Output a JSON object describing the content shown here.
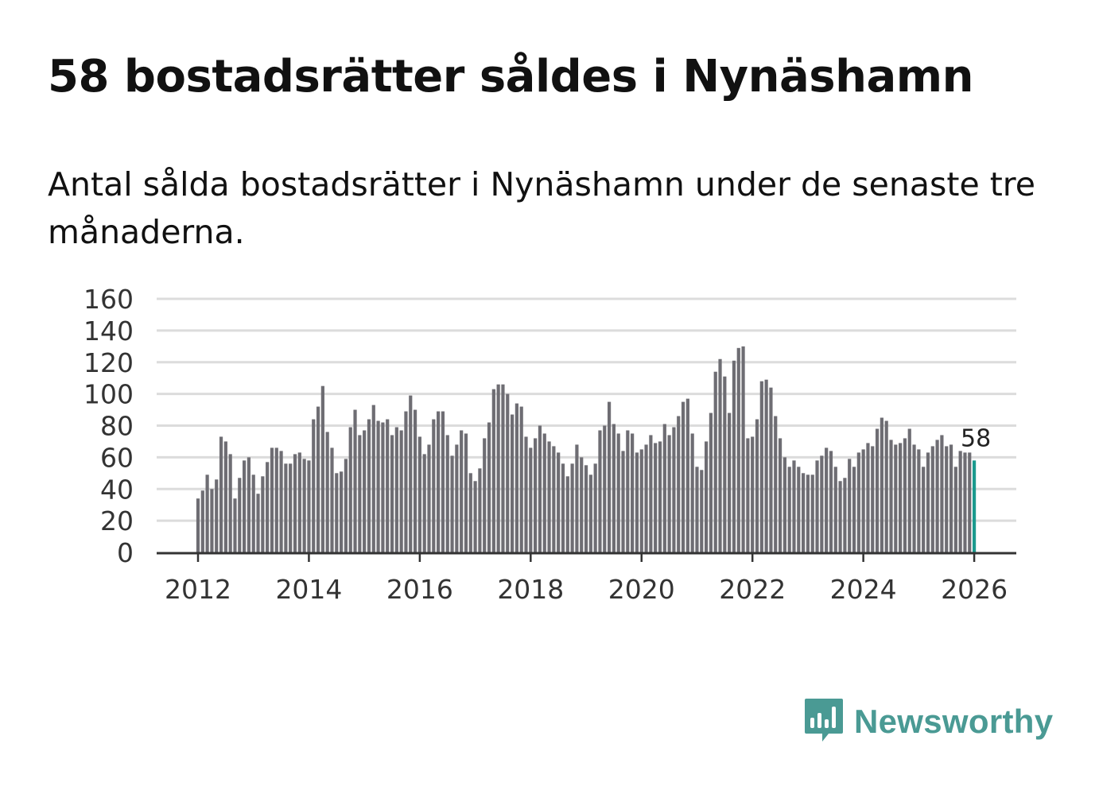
{
  "title": "58 bostadsrätter såldes i Nynäshamn",
  "subtitle": "Antal sålda bostadsrätter i Nynäshamn under de senaste tre månaderna.",
  "brand": {
    "name": "Newsworthy",
    "color": "#4a9a94",
    "icon": "newsworthy-logo-icon"
  },
  "colors": {
    "bar": "#6e6d73",
    "highlight": "#1b9a8e",
    "grid": "#dcdcdc",
    "axis": "#333333"
  },
  "chart_data": {
    "type": "bar",
    "title": "58 bostadsrätter såldes i Nynäshamn",
    "xlabel": "",
    "ylabel": "",
    "ylim": [
      0,
      160
    ],
    "yticks": [
      0,
      20,
      40,
      60,
      80,
      100,
      120,
      140,
      160
    ],
    "xticks": [
      2012,
      2014,
      2016,
      2018,
      2020,
      2022,
      2024,
      2026
    ],
    "x_start": "2012-01",
    "x_end": "2026-01",
    "grid": true,
    "end_label": "58",
    "values": [
      34,
      39,
      49,
      40,
      46,
      73,
      70,
      62,
      34,
      47,
      58,
      60,
      49,
      37,
      48,
      57,
      66,
      66,
      64,
      56,
      56,
      62,
      63,
      59,
      58,
      84,
      92,
      105,
      76,
      66,
      50,
      51,
      59,
      79,
      90,
      74,
      77,
      84,
      93,
      83,
      82,
      84,
      74,
      79,
      77,
      89,
      99,
      90,
      73,
      62,
      68,
      84,
      89,
      89,
      74,
      61,
      68,
      77,
      75,
      50,
      45,
      53,
      72,
      82,
      103,
      106,
      106,
      100,
      87,
      94,
      92,
      73,
      66,
      72,
      80,
      75,
      70,
      67,
      63,
      56,
      48,
      56,
      68,
      60,
      55,
      49,
      56,
      77,
      80,
      95,
      81,
      75,
      64,
      77,
      75,
      63,
      65,
      68,
      74,
      69,
      70,
      81,
      74,
      79,
      86,
      95,
      97,
      75,
      54,
      52,
      70,
      88,
      114,
      122,
      111,
      88,
      121,
      129,
      130,
      72,
      73,
      84,
      108,
      109,
      104,
      86,
      72,
      60,
      54,
      58,
      54,
      50,
      49,
      49,
      58,
      61,
      66,
      64,
      54,
      45,
      47,
      59,
      54,
      63,
      65,
      69,
      67,
      78,
      85,
      83,
      71,
      68,
      69,
      72,
      78,
      68,
      65,
      54,
      63,
      67,
      71,
      74,
      67,
      68,
      54,
      64,
      63,
      63,
      58
    ]
  }
}
